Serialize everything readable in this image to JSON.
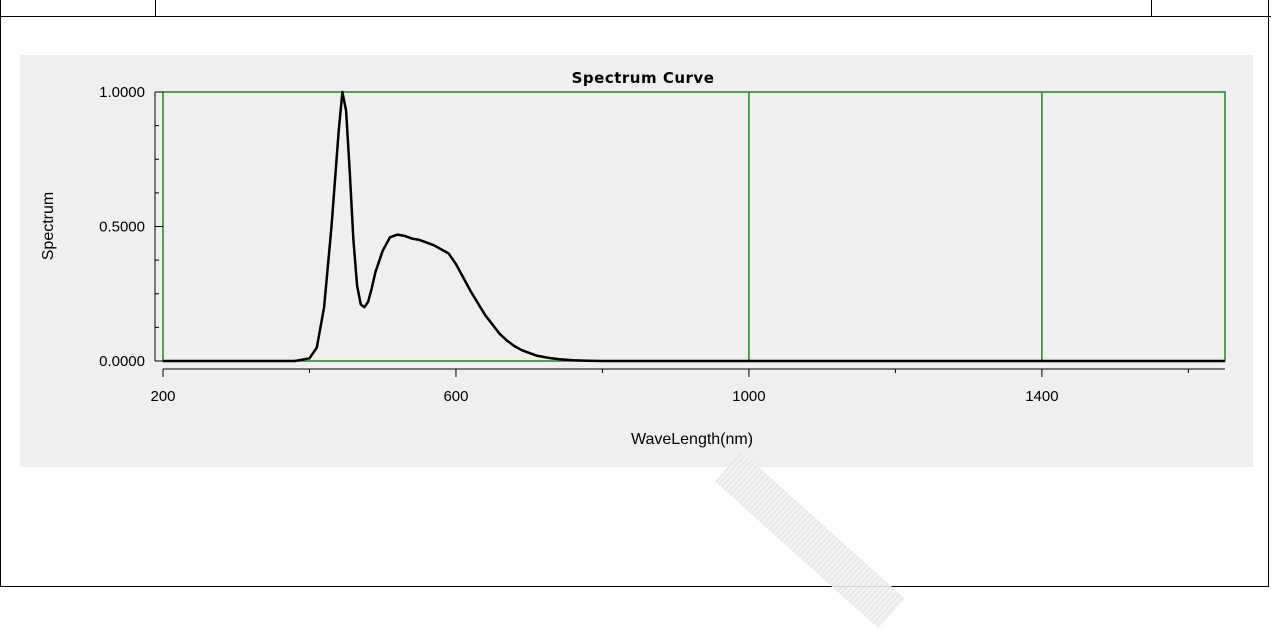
{
  "chart_data": {
    "type": "line",
    "title": "Spectrum Curve",
    "xlabel": "WaveLength(nm)",
    "ylabel": "Spectrum",
    "xlim": [
      200,
      1650
    ],
    "ylim": [
      0,
      1
    ],
    "x_ticks": [
      "200",
      "600",
      "1000",
      "1400"
    ],
    "y_ticks": [
      "1.0000",
      "0.5000",
      "0.0000"
    ],
    "grid": "vertical lines at 1000 and 1400",
    "colors": {
      "plot_frame": "#1a8a1a",
      "line": "#000000",
      "background": "#efefef"
    },
    "series": [
      {
        "x": [
          200,
          380,
          400,
          410,
          420,
          430,
          440,
          445,
          450,
          455,
          460,
          465,
          470,
          475,
          480,
          485,
          490,
          500,
          510,
          520,
          530,
          540,
          550,
          560,
          570,
          580,
          590,
          600,
          610,
          620,
          630,
          640,
          650,
          660,
          670,
          680,
          690,
          700,
          710,
          720,
          730,
          740,
          750,
          760,
          770,
          780,
          800,
          900,
          1000,
          1100,
          1200,
          1300,
          1400,
          1500,
          1600,
          1650
        ],
        "y": [
          0.0,
          0.0,
          0.01,
          0.05,
          0.2,
          0.5,
          0.86,
          1.0,
          0.93,
          0.7,
          0.45,
          0.28,
          0.21,
          0.2,
          0.22,
          0.27,
          0.33,
          0.41,
          0.46,
          0.47,
          0.465,
          0.455,
          0.45,
          0.44,
          0.43,
          0.415,
          0.4,
          0.36,
          0.31,
          0.26,
          0.215,
          0.17,
          0.135,
          0.1,
          0.075,
          0.055,
          0.04,
          0.03,
          0.02,
          0.015,
          0.01,
          0.007,
          0.005,
          0.003,
          0.002,
          0.001,
          0.0,
          0.0,
          0.0,
          0.0,
          0.0,
          0.0,
          0.0,
          0.0,
          0.0,
          0.0
        ]
      }
    ]
  }
}
